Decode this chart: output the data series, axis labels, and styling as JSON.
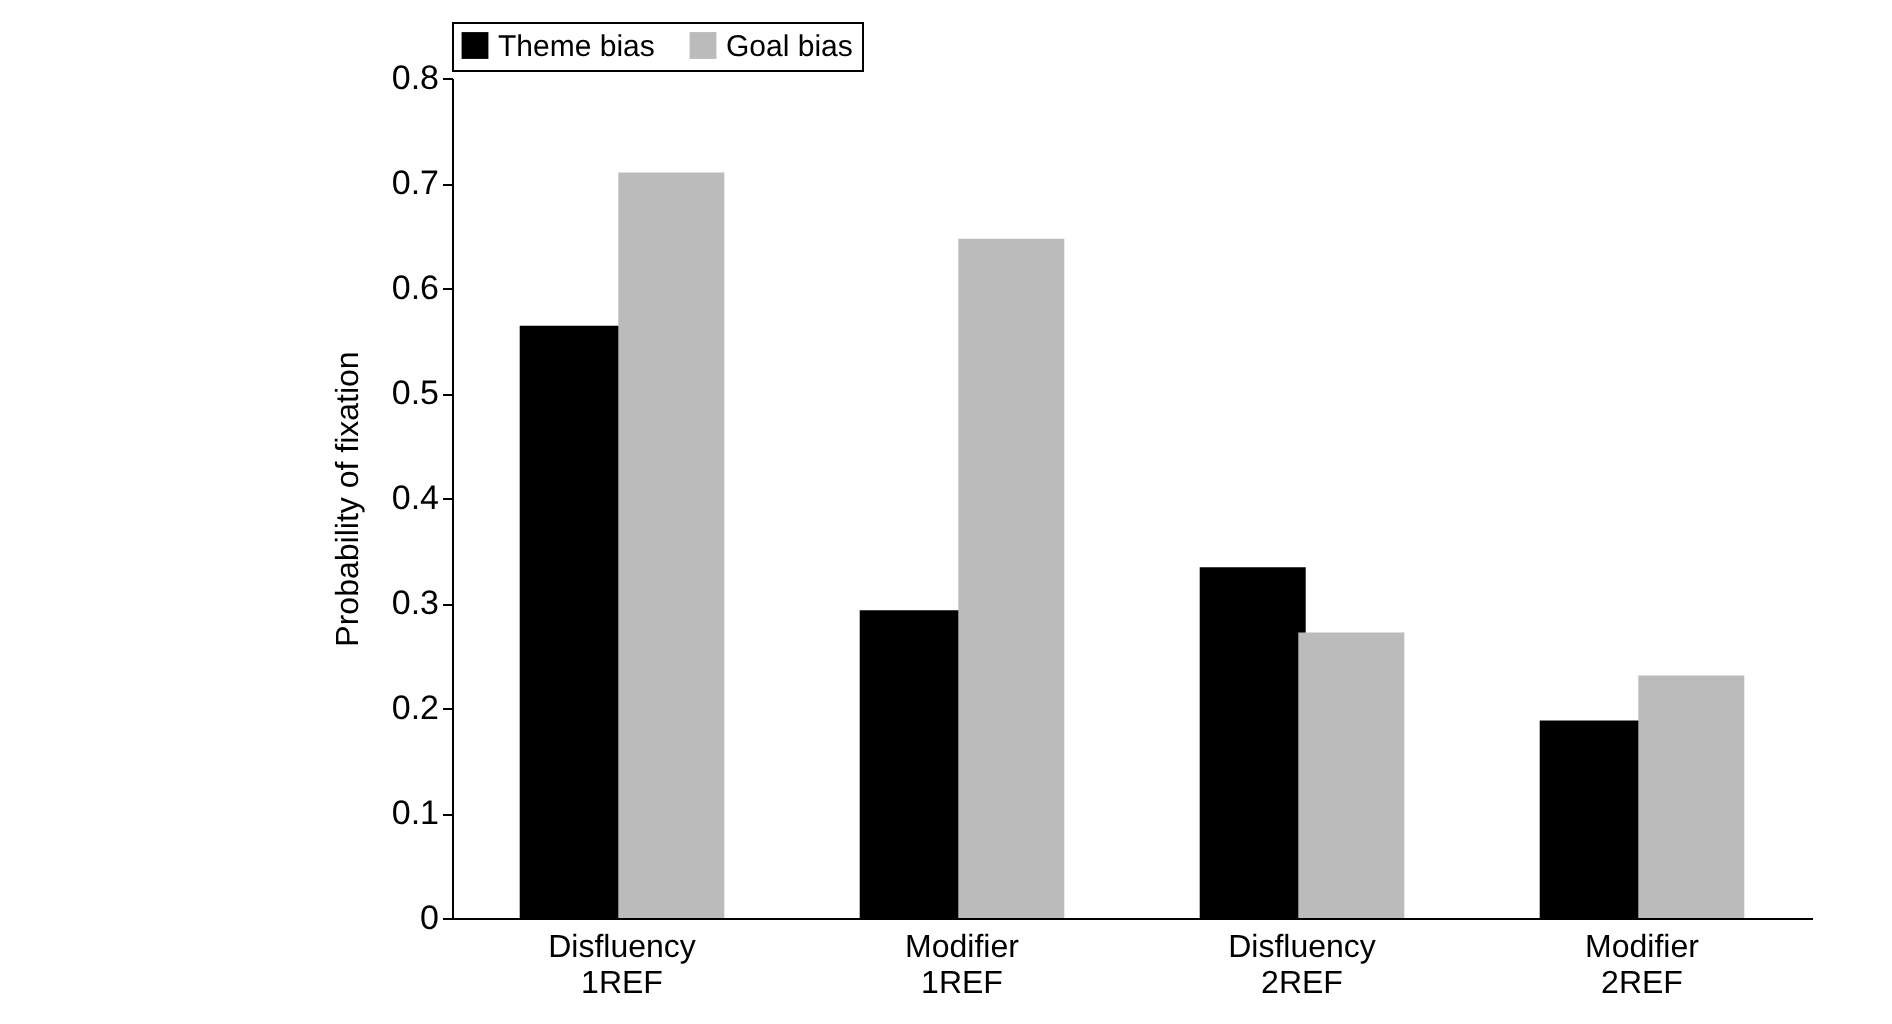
{
  "chart_data": {
    "type": "bar",
    "ylabel": "Probability of fixation",
    "categories": [
      "Disfluency 1REF",
      "Modifier 1REF",
      "Disfluency 2REF",
      "Modifier 2REF"
    ],
    "series": [
      {
        "name": "Theme bias",
        "color": "#000000",
        "values": [
          0.564,
          0.293,
          0.334,
          0.188
        ]
      },
      {
        "name": "Goal bias",
        "color": "#bbbbbb",
        "values": [
          0.71,
          0.647,
          0.272,
          0.231
        ]
      }
    ],
    "ylim": [
      0,
      0.8
    ],
    "yticks": [
      0,
      0.1,
      0.2,
      0.3,
      0.4,
      0.5,
      0.6,
      0.7,
      0.8
    ],
    "grid": false,
    "legend": "top"
  }
}
